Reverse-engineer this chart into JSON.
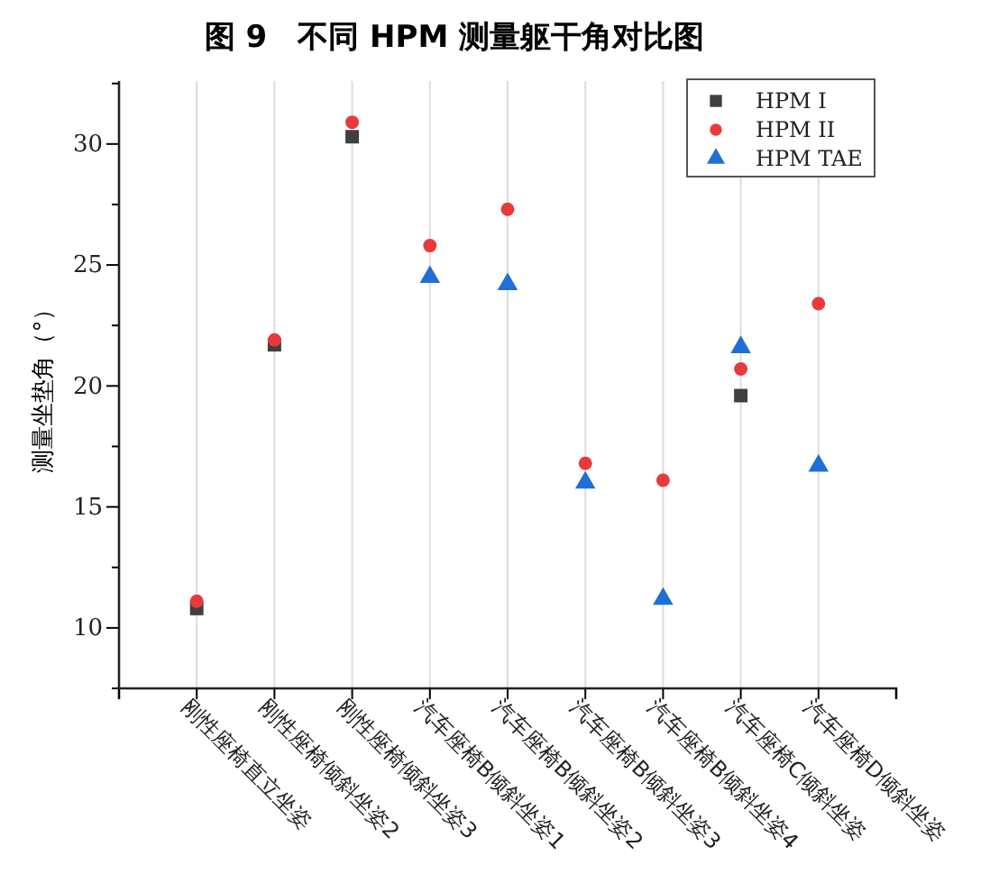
{
  "chart_data": {
    "type": "scatter",
    "title": "图 9　不同 HPM 测量躯干角对比图",
    "ylabel": "测量坐垫角（°）",
    "categories": [
      "刚性座椅直立坐姿",
      "刚性座椅倾斜坐姿2",
      "刚性座椅倾斜坐姿3",
      "汽车座椅B倾斜坐姿1",
      "汽车座椅B倾斜坐姿2",
      "汽车座椅B倾斜坐姿3",
      "汽车座椅B倾斜坐姿4",
      "汽车座椅C倾斜坐姿",
      "汽车座椅D倾斜坐姿"
    ],
    "series": [
      {
        "name": "HPM I",
        "color": "#404040",
        "marker": "square",
        "values": [
          10.8,
          21.7,
          30.3,
          null,
          null,
          null,
          null,
          19.6,
          null
        ]
      },
      {
        "name": "HPM II",
        "color": "#e83a3a",
        "marker": "circle",
        "values": [
          11.1,
          21.9,
          30.9,
          25.8,
          27.3,
          16.8,
          16.1,
          20.7,
          23.4
        ]
      },
      {
        "name": "HPM TAE",
        "color": "#1f6fd6",
        "marker": "triangle",
        "values": [
          null,
          null,
          null,
          24.5,
          24.2,
          16.0,
          11.2,
          21.6,
          16.7
        ]
      }
    ],
    "ylim": [
      7.5,
      32.6
    ],
    "yticks": [
      {
        "value": 7.5,
        "label": null
      },
      10,
      {
        "value": 12.5,
        "label": null
      },
      15,
      {
        "value": 17.5,
        "label": null
      },
      20,
      {
        "value": 22.5,
        "label": null
      },
      25,
      {
        "value": 27.5,
        "label": null
      },
      30,
      {
        "value": 32.5,
        "label": null
      }
    ],
    "grid": "x",
    "legend": "top right"
  }
}
